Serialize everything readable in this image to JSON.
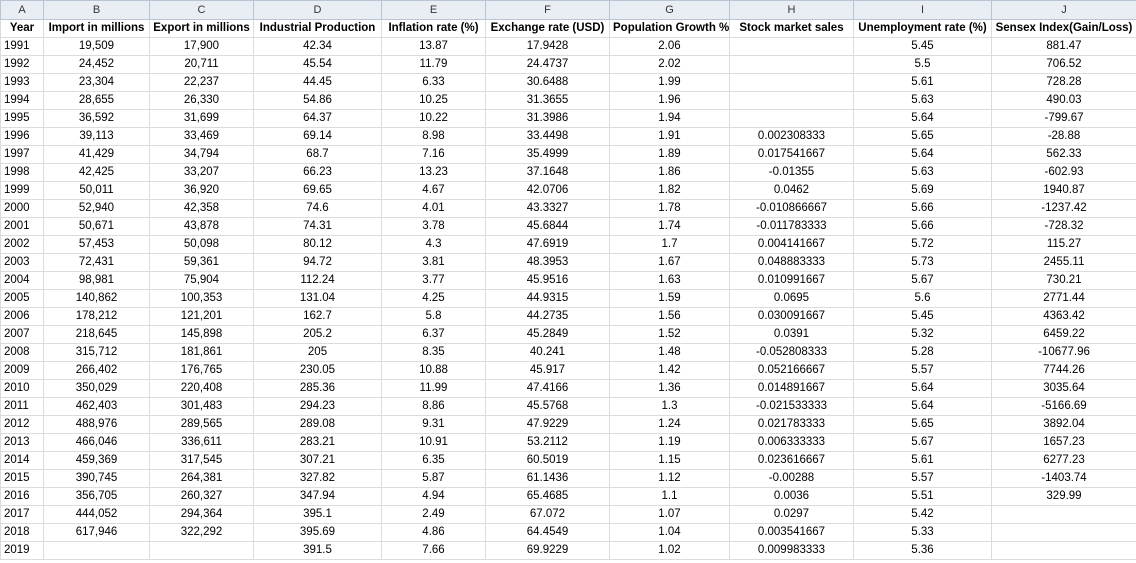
{
  "column_letters": [
    "A",
    "B",
    "C",
    "D",
    "E",
    "F",
    "G",
    "H",
    "I",
    "J"
  ],
  "headers": [
    "Year",
    "Import in millions",
    "Export in millions",
    "Industrial Production",
    "Inflation rate (%)",
    "Exchange rate (USD)",
    "Population Growth %",
    "Stock market sales",
    "Unemployment rate (%)",
    "Sensex Index(Gain/Loss)"
  ],
  "rows": [
    [
      "1991",
      "19,509",
      "17,900",
      "42.34",
      "13.87",
      "17.9428",
      "2.06",
      "",
      "5.45",
      "881.47"
    ],
    [
      "1992",
      "24,452",
      "20,711",
      "45.54",
      "11.79",
      "24.4737",
      "2.02",
      "",
      "5.5",
      "706.52"
    ],
    [
      "1993",
      "23,304",
      "22,237",
      "44.45",
      "6.33",
      "30.6488",
      "1.99",
      "",
      "5.61",
      "728.28"
    ],
    [
      "1994",
      "28,655",
      "26,330",
      "54.86",
      "10.25",
      "31.3655",
      "1.96",
      "",
      "5.63",
      "490.03"
    ],
    [
      "1995",
      "36,592",
      "31,699",
      "64.37",
      "10.22",
      "31.3986",
      "1.94",
      "",
      "5.64",
      "-799.67"
    ],
    [
      "1996",
      "39,113",
      "33,469",
      "69.14",
      "8.98",
      "33.4498",
      "1.91",
      "0.002308333",
      "5.65",
      "-28.88"
    ],
    [
      "1997",
      "41,429",
      "34,794",
      "68.7",
      "7.16",
      "35.4999",
      "1.89",
      "0.017541667",
      "5.64",
      "562.33"
    ],
    [
      "1998",
      "42,425",
      "33,207",
      "66.23",
      "13.23",
      "37.1648",
      "1.86",
      "-0.01355",
      "5.63",
      "-602.93"
    ],
    [
      "1999",
      "50,011",
      "36,920",
      "69.65",
      "4.67",
      "42.0706",
      "1.82",
      "0.0462",
      "5.69",
      "1940.87"
    ],
    [
      "2000",
      "52,940",
      "42,358",
      "74.6",
      "4.01",
      "43.3327",
      "1.78",
      "-0.010866667",
      "5.66",
      "-1237.42"
    ],
    [
      "2001",
      "50,671",
      "43,878",
      "74.31",
      "3.78",
      "45.6844",
      "1.74",
      "-0.011783333",
      "5.66",
      "-728.32"
    ],
    [
      "2002",
      "57,453",
      "50,098",
      "80.12",
      "4.3",
      "47.6919",
      "1.7",
      "0.004141667",
      "5.72",
      "115.27"
    ],
    [
      "2003",
      "72,431",
      "59,361",
      "94.72",
      "3.81",
      "48.3953",
      "1.67",
      "0.048883333",
      "5.73",
      "2455.11"
    ],
    [
      "2004",
      "98,981",
      "75,904",
      "112.24",
      "3.77",
      "45.9516",
      "1.63",
      "0.010991667",
      "5.67",
      "730.21"
    ],
    [
      "2005",
      "140,862",
      "100,353",
      "131.04",
      "4.25",
      "44.9315",
      "1.59",
      "0.0695",
      "5.6",
      "2771.44"
    ],
    [
      "2006",
      "178,212",
      "121,201",
      "162.7",
      "5.8",
      "44.2735",
      "1.56",
      "0.030091667",
      "5.45",
      "4363.42"
    ],
    [
      "2007",
      "218,645",
      "145,898",
      "205.2",
      "6.37",
      "45.2849",
      "1.52",
      "0.0391",
      "5.32",
      "6459.22"
    ],
    [
      "2008",
      "315,712",
      "181,861",
      "205",
      "8.35",
      "40.241",
      "1.48",
      "-0.052808333",
      "5.28",
      "-10677.96"
    ],
    [
      "2009",
      "266,402",
      "176,765",
      "230.05",
      "10.88",
      "45.917",
      "1.42",
      "0.052166667",
      "5.57",
      "7744.26"
    ],
    [
      "2010",
      "350,029",
      "220,408",
      "285.36",
      "11.99",
      "47.4166",
      "1.36",
      "0.014891667",
      "5.64",
      "3035.64"
    ],
    [
      "2011",
      "462,403",
      "301,483",
      "294.23",
      "8.86",
      "45.5768",
      "1.3",
      "-0.021533333",
      "5.64",
      "-5166.69"
    ],
    [
      "2012",
      "488,976",
      "289,565",
      "289.08",
      "9.31",
      "47.9229",
      "1.24",
      "0.021783333",
      "5.65",
      "3892.04"
    ],
    [
      "2013",
      "466,046",
      "336,611",
      "283.21",
      "10.91",
      "53.2112",
      "1.19",
      "0.006333333",
      "5.67",
      "1657.23"
    ],
    [
      "2014",
      "459,369",
      "317,545",
      "307.21",
      "6.35",
      "60.5019",
      "1.15",
      "0.023616667",
      "5.61",
      "6277.23"
    ],
    [
      "2015",
      "390,745",
      "264,381",
      "327.82",
      "5.87",
      "61.1436",
      "1.12",
      "-0.00288",
      "5.57",
      "-1403.74"
    ],
    [
      "2016",
      "356,705",
      "260,327",
      "347.94",
      "4.94",
      "65.4685",
      "1.1",
      "0.0036",
      "5.51",
      "329.99"
    ],
    [
      "2017",
      "444,052",
      "294,364",
      "395.1",
      "2.49",
      "67.072",
      "1.07",
      "0.0297",
      "5.42",
      ""
    ],
    [
      "2018",
      "617,946",
      "322,292",
      "395.69",
      "4.86",
      "64.4549",
      "1.04",
      "0.003541667",
      "5.33",
      ""
    ],
    [
      "2019",
      "",
      "",
      "391.5",
      "7.66",
      "69.9229",
      "1.02",
      "0.009983333",
      "5.36",
      ""
    ]
  ]
}
